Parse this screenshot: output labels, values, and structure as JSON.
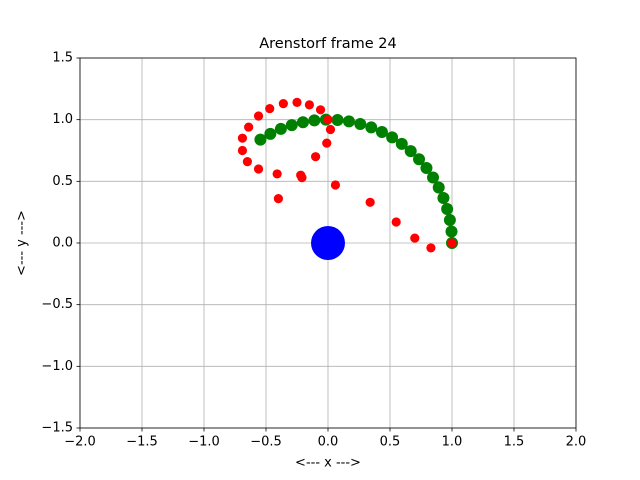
{
  "chart_data": {
    "type": "scatter",
    "title": "Arenstorf frame 24",
    "xlabel": "<---  x  --->",
    "ylabel": "<---  y  --->",
    "xlim": [
      -2,
      2
    ],
    "ylim": [
      -1.5,
      1.5
    ],
    "xticks": [
      {
        "value": -2,
        "label": "−2.0"
      },
      {
        "value": -1.5,
        "label": "−1.5"
      },
      {
        "value": -1,
        "label": "−1.0"
      },
      {
        "value": -0.5,
        "label": "−0.5"
      },
      {
        "value": 0,
        "label": "0.0"
      },
      {
        "value": 0.5,
        "label": "0.5"
      },
      {
        "value": 1,
        "label": "1.0"
      },
      {
        "value": 1.5,
        "label": "1.5"
      },
      {
        "value": 2,
        "label": "2.0"
      }
    ],
    "yticks": [
      {
        "value": -1.5,
        "label": "−1.5"
      },
      {
        "value": -1,
        "label": "−1.0"
      },
      {
        "value": -0.5,
        "label": "−0.5"
      },
      {
        "value": 0,
        "label": "0.0"
      },
      {
        "value": 0.5,
        "label": "0.5"
      },
      {
        "value": 1,
        "label": "1.0"
      },
      {
        "value": 1.5,
        "label": "1.5"
      }
    ],
    "grid": true,
    "series": [
      {
        "color": "#008000",
        "x": [
          1.0,
          0.996,
          0.983,
          0.961,
          0.931,
          0.893,
          0.847,
          0.794,
          0.734,
          0.667,
          0.595,
          0.517,
          0.435,
          0.349,
          0.26,
          0.169,
          0.077,
          -0.017,
          -0.11,
          -0.202,
          -0.292,
          -0.38,
          -0.465,
          -0.545
        ],
        "values": [
          0.0,
          0.093,
          0.186,
          0.276,
          0.365,
          0.45,
          0.531,
          0.608,
          0.679,
          0.745,
          0.804,
          0.856,
          0.9,
          0.937,
          0.965,
          0.986,
          0.997,
          1.0,
          0.994,
          0.979,
          0.956,
          0.925,
          0.885,
          0.838
        ]
      },
      {
        "color": "#ff0000",
        "x": [
          1.0,
          0.83,
          0.7,
          0.55,
          0.34,
          0.06,
          -0.22,
          -0.21,
          -0.4,
          -0.41,
          -0.56,
          -0.65,
          -0.69,
          -0.69,
          -0.64,
          -0.56,
          -0.47,
          -0.36,
          -0.25,
          -0.15,
          -0.06,
          0.0,
          0.02,
          -0.01,
          -0.1
        ],
        "values": [
          0.0,
          -0.04,
          0.04,
          0.17,
          0.33,
          0.47,
          0.55,
          0.53,
          0.36,
          0.56,
          0.6,
          0.66,
          0.75,
          0.85,
          0.94,
          1.03,
          1.09,
          1.13,
          1.14,
          1.12,
          1.08,
          1.0,
          0.92,
          0.81,
          0.7
        ]
      },
      {
        "color": "#0000ff",
        "x": [
          0.0
        ],
        "values": [
          0.0
        ]
      }
    ]
  }
}
